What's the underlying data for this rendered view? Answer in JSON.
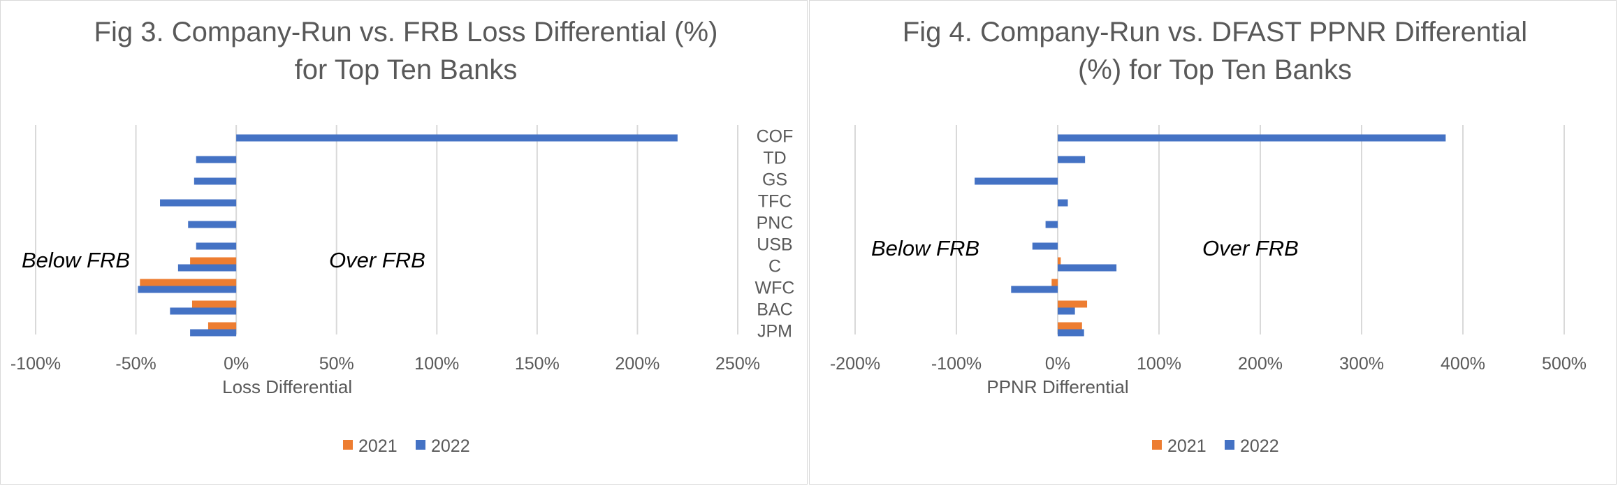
{
  "chart_data": [
    {
      "type": "bar",
      "orientation": "horizontal",
      "title_lines": [
        "Fig 3. Company-Run  vs. FRB Loss Differential (%)",
        "for Top Ten Banks"
      ],
      "xlabel": "Loss Differential",
      "ylabel": "",
      "categories": [
        "COF",
        "TD",
        "GS",
        "TFC",
        "PNC",
        "USB",
        "C",
        "WFC",
        "BAC",
        "JPM"
      ],
      "series": [
        {
          "name": "2021",
          "color": "#ED7D31",
          "values": [
            null,
            null,
            null,
            null,
            null,
            null,
            -23,
            -48,
            -22,
            -14
          ]
        },
        {
          "name": "2022",
          "color": "#4472C4",
          "values": [
            220,
            -20,
            -21,
            -38,
            -24,
            -20,
            -29,
            -49,
            -33,
            -23
          ]
        }
      ],
      "xlim": [
        -100,
        250
      ],
      "xticks": [
        -100,
        -50,
        0,
        50,
        100,
        150,
        200,
        250
      ],
      "tick_labels": [
        "-100%",
        "-50%",
        "0%",
        "50%",
        "100%",
        "150%",
        "200%",
        "250%"
      ],
      "annotations": [
        "Below  FRB",
        "Over FRB"
      ],
      "grid": true,
      "legend_position": "bottom"
    },
    {
      "type": "bar",
      "orientation": "horizontal",
      "title_lines": [
        "Fig 4. Company-Run  vs. DFAST PPNR Differential",
        "(%) for  Top Ten Banks"
      ],
      "xlabel": "PPNR Differential",
      "ylabel": "",
      "categories": [
        "COF",
        "TD",
        "GS",
        "TFC",
        "PNC",
        "USB",
        "C",
        "WFC",
        "BAC",
        "JPM"
      ],
      "series": [
        {
          "name": "2021",
          "color": "#ED7D31",
          "values": [
            null,
            null,
            null,
            null,
            null,
            null,
            3,
            -6,
            29,
            24
          ]
        },
        {
          "name": "2022",
          "color": "#4472C4",
          "values": [
            383,
            27,
            -82,
            10,
            -12,
            -25,
            58,
            -46,
            17,
            26
          ]
        }
      ],
      "xlim": [
        -200,
        500
      ],
      "xticks": [
        -200,
        -100,
        0,
        100,
        200,
        300,
        400,
        500
      ],
      "tick_labels": [
        "-200%",
        "-100%",
        "0%",
        "100%",
        "200%",
        "300%",
        "400%",
        "500%"
      ],
      "annotations": [
        "Below  FRB",
        "Over FRB"
      ],
      "grid": true,
      "legend_position": "bottom"
    }
  ]
}
